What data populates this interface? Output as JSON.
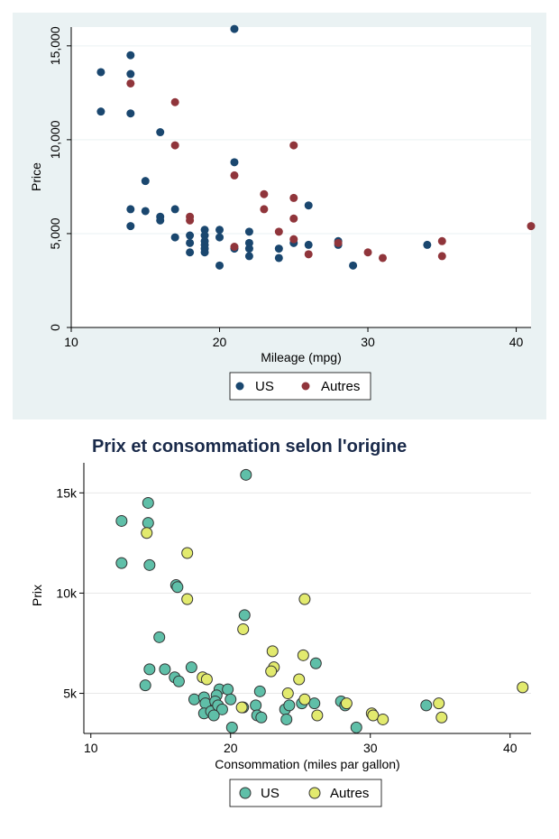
{
  "chart_data": [
    {
      "type": "scatter",
      "title": "",
      "xlabel": "Mileage (mpg)",
      "ylabel": "Price",
      "xlim": [
        10,
        41
      ],
      "ylim": [
        0,
        16000
      ],
      "xticks": [
        10,
        20,
        30,
        40
      ],
      "xtick_labels": [
        "10",
        "20",
        "30",
        "40"
      ],
      "yticks": [
        0,
        5000,
        10000,
        15000
      ],
      "ytick_labels": [
        "0",
        "5,000",
        "10,000",
        "15,000"
      ],
      "grid": true,
      "background": "#dde6ea",
      "legend_position": "bottom",
      "series": [
        {
          "name": "US",
          "color": "#1a476f",
          "points": [
            [
              12,
              11500
            ],
            [
              12,
              13600
            ],
            [
              14,
              14500
            ],
            [
              14,
              13500
            ],
            [
              14,
              11400
            ],
            [
              14,
              6300
            ],
            [
              14,
              5400
            ],
            [
              15,
              7800
            ],
            [
              15,
              6200
            ],
            [
              16,
              10400
            ],
            [
              16,
              5900
            ],
            [
              16,
              5700
            ],
            [
              17,
              6300
            ],
            [
              17,
              4800
            ],
            [
              18,
              4900
            ],
            [
              18,
              4500
            ],
            [
              18,
              4000
            ],
            [
              19,
              5200
            ],
            [
              19,
              4900
            ],
            [
              19,
              4600
            ],
            [
              19,
              4400
            ],
            [
              19,
              4200
            ],
            [
              19,
              4000
            ],
            [
              20,
              5200
            ],
            [
              20,
              4800
            ],
            [
              20,
              3300
            ],
            [
              21,
              15900
            ],
            [
              21,
              8800
            ],
            [
              21,
              4200
            ],
            [
              22,
              5100
            ],
            [
              22,
              4500
            ],
            [
              22,
              4200
            ],
            [
              22,
              3800
            ],
            [
              24,
              4200
            ],
            [
              24,
              3700
            ],
            [
              25,
              4500
            ],
            [
              26,
              6500
            ],
            [
              26,
              4400
            ],
            [
              28,
              4600
            ],
            [
              28,
              4400
            ],
            [
              29,
              3300
            ],
            [
              34,
              4400
            ]
          ]
        },
        {
          "name": "Autres",
          "color": "#90353b",
          "points": [
            [
              14,
              13000
            ],
            [
              17,
              12000
            ],
            [
              17,
              9700
            ],
            [
              18,
              5900
            ],
            [
              18,
              5700
            ],
            [
              21,
              8100
            ],
            [
              21,
              4300
            ],
            [
              23,
              7100
            ],
            [
              23,
              6300
            ],
            [
              24,
              5100
            ],
            [
              25,
              9700
            ],
            [
              25,
              6900
            ],
            [
              25,
              5800
            ],
            [
              25,
              4700
            ],
            [
              26,
              3900
            ],
            [
              28,
              4500
            ],
            [
              30,
              4000
            ],
            [
              31,
              3700
            ],
            [
              35,
              4600
            ],
            [
              35,
              3800
            ],
            [
              41,
              5400
            ]
          ]
        }
      ]
    },
    {
      "type": "scatter",
      "title": "Prix et consommation selon l'origine",
      "xlabel": "Consommation (miles par gallon)",
      "ylabel": "Prix",
      "xlim": [
        9.5,
        41.5
      ],
      "ylim": [
        3000,
        16500
      ],
      "xticks": [
        10,
        20,
        30,
        40
      ],
      "xtick_labels": [
        "10",
        "20",
        "30",
        "40"
      ],
      "yticks": [
        5000,
        10000,
        15000
      ],
      "ytick_labels": [
        "5k",
        "10k",
        "15k"
      ],
      "grid": true,
      "background": "#ffffff",
      "legend_position": "bottom",
      "series": [
        {
          "name": "US",
          "color": "#5fbfa8",
          "points": [
            [
              12.2,
              11500
            ],
            [
              12.2,
              13600
            ],
            [
              14.1,
              14500
            ],
            [
              14.1,
              13500
            ],
            [
              14.2,
              11400
            ],
            [
              14.2,
              6200
            ],
            [
              13.9,
              5400
            ],
            [
              14.9,
              7800
            ],
            [
              15.3,
              6200
            ],
            [
              16.1,
              10400
            ],
            [
              16.2,
              10300
            ],
            [
              16.0,
              5800
            ],
            [
              16.3,
              5600
            ],
            [
              17.2,
              6300
            ],
            [
              17.4,
              4700
            ],
            [
              18.1,
              4800
            ],
            [
              18.2,
              4500
            ],
            [
              18.1,
              4000
            ],
            [
              18.6,
              4100
            ],
            [
              19.2,
              5200
            ],
            [
              19.0,
              4900
            ],
            [
              18.9,
              4600
            ],
            [
              19.1,
              4400
            ],
            [
              19.4,
              4200
            ],
            [
              18.8,
              3900
            ],
            [
              19.8,
              5200
            ],
            [
              20.0,
              4700
            ],
            [
              20.1,
              3300
            ],
            [
              21.1,
              15900
            ],
            [
              21.0,
              8900
            ],
            [
              20.9,
              4300
            ],
            [
              22.1,
              5100
            ],
            [
              21.8,
              4400
            ],
            [
              21.9,
              3900
            ],
            [
              22.2,
              3800
            ],
            [
              23.9,
              4200
            ],
            [
              24.0,
              3700
            ],
            [
              24.2,
              4400
            ],
            [
              25.1,
              4500
            ],
            [
              26.1,
              6500
            ],
            [
              26.0,
              4500
            ],
            [
              27.9,
              4600
            ],
            [
              28.2,
              4400
            ],
            [
              29.0,
              3300
            ],
            [
              34.0,
              4400
            ]
          ]
        },
        {
          "name": "Autres",
          "color": "#e2ea6e",
          "points": [
            [
              14.0,
              13000
            ],
            [
              16.9,
              12000
            ],
            [
              16.9,
              9700
            ],
            [
              18.0,
              5800
            ],
            [
              18.3,
              5700
            ],
            [
              20.9,
              8200
            ],
            [
              20.8,
              4300
            ],
            [
              23.0,
              7100
            ],
            [
              23.1,
              6300
            ],
            [
              22.9,
              6100
            ],
            [
              24.1,
              5000
            ],
            [
              25.3,
              9700
            ],
            [
              25.2,
              6900
            ],
            [
              24.9,
              5700
            ],
            [
              25.3,
              4700
            ],
            [
              26.2,
              3900
            ],
            [
              28.3,
              4500
            ],
            [
              30.1,
              4000
            ],
            [
              30.2,
              3900
            ],
            [
              30.9,
              3700
            ],
            [
              34.9,
              4500
            ],
            [
              35.1,
              3800
            ],
            [
              40.9,
              5300
            ]
          ]
        }
      ]
    }
  ]
}
